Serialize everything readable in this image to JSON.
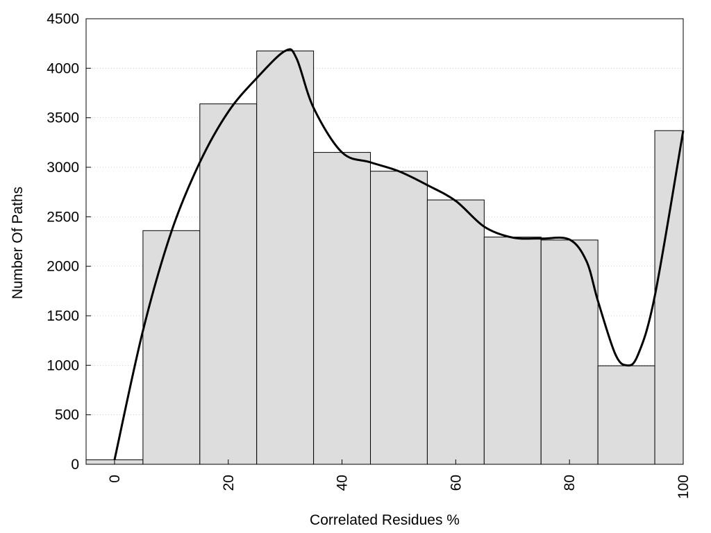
{
  "chart_data": {
    "type": "bar",
    "title": "",
    "xlabel": "Correlated Residues %",
    "ylabel": "Number Of Paths",
    "xlim": [
      -5,
      100
    ],
    "ylim": [
      0,
      4500
    ],
    "x_ticks": [
      0,
      20,
      40,
      60,
      80,
      100
    ],
    "y_ticks": [
      0,
      500,
      1000,
      1500,
      2000,
      2500,
      3000,
      3500,
      4000,
      4500
    ],
    "grid": "horizontal dotted",
    "bins": [
      {
        "start": -5,
        "end": 5,
        "value": 45
      },
      {
        "start": 5,
        "end": 15,
        "value": 2360
      },
      {
        "start": 15,
        "end": 25,
        "value": 3640
      },
      {
        "start": 25,
        "end": 35,
        "value": 4175
      },
      {
        "start": 35,
        "end": 45,
        "value": 3150
      },
      {
        "start": 45,
        "end": 55,
        "value": 2960
      },
      {
        "start": 55,
        "end": 65,
        "value": 2670
      },
      {
        "start": 65,
        "end": 75,
        "value": 2295
      },
      {
        "start": 75,
        "end": 85,
        "value": 2265
      },
      {
        "start": 85,
        "end": 95,
        "value": 995
      },
      {
        "start": 95,
        "end": 100,
        "value": 3370
      }
    ],
    "curve": {
      "x": [
        0,
        5,
        10,
        15,
        20,
        25,
        30,
        32,
        35,
        40,
        45,
        50,
        55,
        60,
        65,
        70,
        75,
        80,
        83,
        85,
        88,
        90,
        92,
        95,
        100
      ],
      "y": [
        45,
        1350,
        2350,
        3050,
        3560,
        3900,
        4175,
        4100,
        3600,
        3150,
        3050,
        2960,
        2820,
        2660,
        2400,
        2290,
        2280,
        2270,
        2050,
        1650,
        1120,
        1000,
        1100,
        1700,
        3370
      ]
    },
    "colors": {
      "bar_fill": "#dddddd",
      "bar_stroke": "#000000",
      "curve": "#000000",
      "grid": "#cccccc"
    }
  }
}
